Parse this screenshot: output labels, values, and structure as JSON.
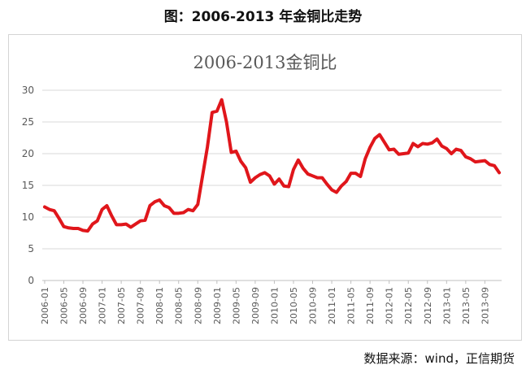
{
  "figure_title": "图：2006-2013 年金铜比走势",
  "source_note": "数据来源：wind，正信期货",
  "chart_data": {
    "type": "line",
    "title": "2006-2013金铜比",
    "xlabel": "",
    "ylabel": "",
    "ylim": [
      0,
      30
    ],
    "yticks": [
      0,
      5,
      10,
      15,
      20,
      25,
      30
    ],
    "grid": true,
    "legend": "none",
    "line_color": "#e0161b",
    "x_tick_labels": [
      "2006-01",
      "2006-05",
      "2006-09",
      "2007-01",
      "2007-05",
      "2007-09",
      "2008-01",
      "2008-05",
      "2008-09",
      "2009-01",
      "2009-05",
      "2009-09",
      "2010-01",
      "2010-05",
      "2010-09",
      "2011-01",
      "2011-05",
      "2011-09",
      "2012-01",
      "2012-05",
      "2012-09",
      "2013-01",
      "2013-05",
      "2013-09"
    ],
    "x": [
      "2006-01",
      "2006-02",
      "2006-03",
      "2006-04",
      "2006-05",
      "2006-06",
      "2006-07",
      "2006-08",
      "2006-09",
      "2006-10",
      "2006-11",
      "2006-12",
      "2007-01",
      "2007-02",
      "2007-03",
      "2007-04",
      "2007-05",
      "2007-06",
      "2007-07",
      "2007-08",
      "2007-09",
      "2007-10",
      "2007-11",
      "2007-12",
      "2008-01",
      "2008-02",
      "2008-03",
      "2008-04",
      "2008-05",
      "2008-06",
      "2008-07",
      "2008-08",
      "2008-09",
      "2008-10",
      "2008-11",
      "2008-12",
      "2009-01",
      "2009-02",
      "2009-03",
      "2009-04",
      "2009-05",
      "2009-06",
      "2009-07",
      "2009-08",
      "2009-09",
      "2009-10",
      "2009-11",
      "2009-12",
      "2010-01",
      "2010-02",
      "2010-03",
      "2010-04",
      "2010-05",
      "2010-06",
      "2010-07",
      "2010-08",
      "2010-09",
      "2010-10",
      "2010-11",
      "2010-12",
      "2011-01",
      "2011-02",
      "2011-03",
      "2011-04",
      "2011-05",
      "2011-06",
      "2011-07",
      "2011-08",
      "2011-09",
      "2011-10",
      "2011-11",
      "2011-12",
      "2012-01",
      "2012-02",
      "2012-03",
      "2012-04",
      "2012-05",
      "2012-06",
      "2012-07",
      "2012-08",
      "2012-09",
      "2012-10",
      "2012-11",
      "2012-12",
      "2013-01",
      "2013-02",
      "2013-03",
      "2013-04",
      "2013-05",
      "2013-06",
      "2013-07",
      "2013-08",
      "2013-09",
      "2013-10",
      "2013-11",
      "2013-12"
    ],
    "values": [
      11.6,
      11.2,
      11.0,
      9.8,
      8.5,
      8.3,
      8.2,
      8.2,
      7.9,
      7.8,
      8.9,
      9.4,
      11.2,
      11.8,
      10.2,
      8.8,
      8.8,
      8.9,
      8.4,
      8.9,
      9.4,
      9.5,
      11.8,
      12.4,
      12.7,
      11.8,
      11.5,
      10.6,
      10.6,
      10.7,
      11.2,
      11.0,
      12.0,
      16.5,
      21.0,
      26.5,
      26.7,
      28.5,
      25.0,
      20.2,
      20.4,
      18.8,
      17.8,
      15.5,
      16.2,
      16.7,
      17.0,
      16.5,
      15.2,
      16.0,
      14.9,
      14.8,
      17.5,
      19.0,
      17.7,
      16.8,
      16.5,
      16.2,
      16.2,
      15.2,
      14.3,
      13.9,
      14.9,
      15.6,
      16.9,
      16.9,
      16.4,
      19.2,
      21.0,
      22.4,
      23.0,
      21.8,
      20.6,
      20.7,
      19.9,
      20.0,
      20.1,
      21.6,
      21.1,
      21.6,
      21.5,
      21.7,
      22.3,
      21.2,
      20.8,
      20.0,
      20.7,
      20.5,
      19.5,
      19.2,
      18.7,
      18.8,
      18.9,
      18.3,
      18.1,
      17.0
    ]
  }
}
